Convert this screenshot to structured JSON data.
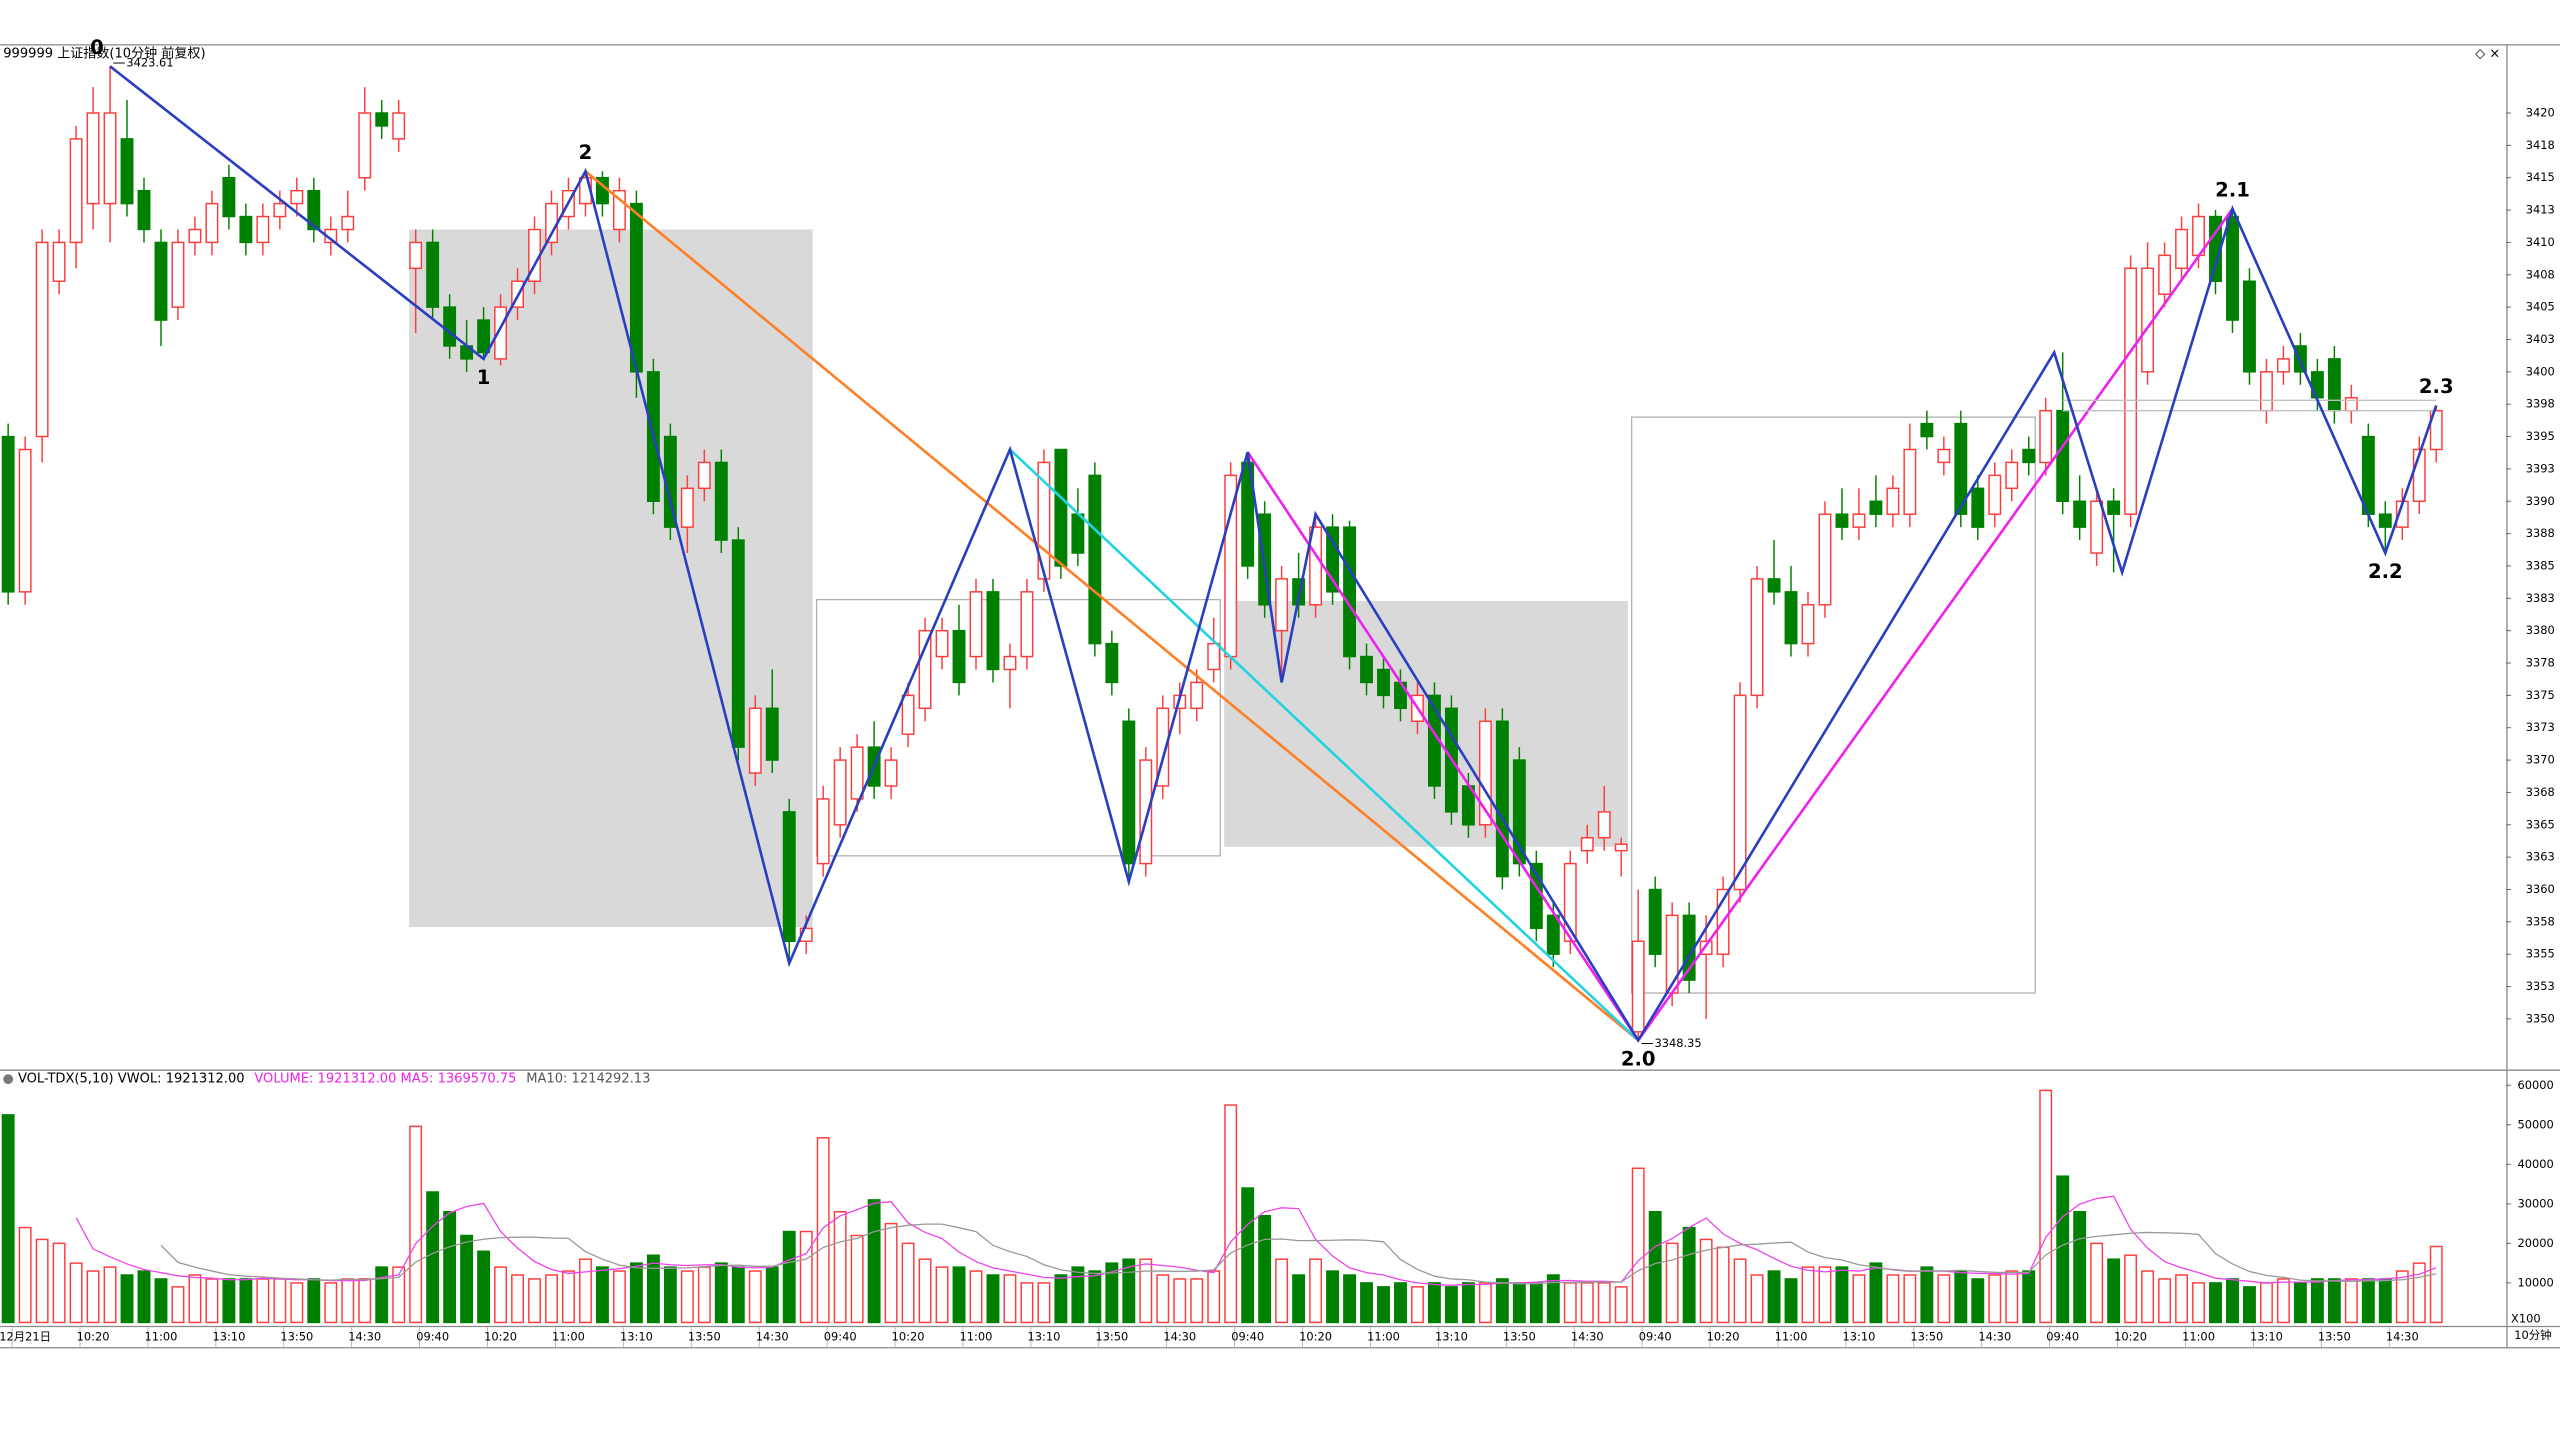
{
  "chart_data": {
    "type": "candlestick",
    "title": "999999 上证指数(10分钟 前复权)",
    "up_color": "#ff3c3c",
    "down_color": "#008000",
    "ylim": [
      3346.1,
      3425.2
    ],
    "yticks": [
      3350,
      {
        "value": 3352.5,
        "label": "3353"
      },
      3355,
      {
        "value": 3357.5,
        "label": "3358"
      },
      3360,
      {
        "value": 3362.5,
        "label": "3363"
      },
      3365,
      {
        "value": 3367.5,
        "label": "3368"
      },
      3370,
      {
        "value": 3372.5,
        "label": "3373"
      },
      3375,
      {
        "value": 3377.5,
        "label": "3378"
      },
      3380,
      {
        "value": 3382.5,
        "label": "3383"
      },
      3385,
      {
        "value": 3387.5,
        "label": "3388"
      },
      3390,
      {
        "value": 3392.5,
        "label": "3393"
      },
      3395,
      {
        "value": 3397.5,
        "label": "3398"
      },
      3400,
      {
        "value": 3402.5,
        "label": "3403"
      },
      3405,
      {
        "value": 3407.5,
        "label": "3408"
      },
      3410,
      {
        "value": 3412.5,
        "label": "3413"
      },
      3415,
      {
        "value": 3417.5,
        "label": "3418"
      },
      3420
    ],
    "xticks": [
      {
        "value": 1,
        "label": "12月21日"
      },
      {
        "value": 5,
        "label": "10:20"
      },
      {
        "value": 9,
        "label": "11:00"
      },
      {
        "value": 13,
        "label": "13:10"
      },
      {
        "value": 17,
        "label": "13:50"
      },
      {
        "value": 21,
        "label": "14:30"
      },
      {
        "value": 25,
        "label": "09:40"
      },
      {
        "value": 29,
        "label": "10:20"
      },
      {
        "value": 33,
        "label": "11:00"
      },
      {
        "value": 37,
        "label": "13:10"
      },
      {
        "value": 41,
        "label": "13:50"
      },
      {
        "value": 45,
        "label": "14:30"
      },
      {
        "value": 49,
        "label": "09:40"
      },
      {
        "value": 53,
        "label": "10:20"
      },
      {
        "value": 57,
        "label": "11:00"
      },
      {
        "value": 61,
        "label": "13:10"
      },
      {
        "value": 65,
        "label": "13:50"
      },
      {
        "value": 69,
        "label": "14:30"
      },
      {
        "value": 73,
        "label": "09:40"
      },
      {
        "value": 77,
        "label": "10:20"
      },
      {
        "value": 81,
        "label": "11:00"
      },
      {
        "value": 85,
        "label": "13:10"
      },
      {
        "value": 89,
        "label": "13:50"
      },
      {
        "value": 93,
        "label": "14:30"
      },
      {
        "value": 97,
        "label": "09:40"
      },
      {
        "value": 101,
        "label": "10:20"
      },
      {
        "value": 105,
        "label": "11:00"
      },
      {
        "value": 109,
        "label": "13:10"
      },
      {
        "value": 113,
        "label": "13:50"
      },
      {
        "value": 117,
        "label": "14:30"
      },
      {
        "value": 121,
        "label": "09:40"
      },
      {
        "value": 125,
        "label": "10:20"
      },
      {
        "value": 129,
        "label": "11:00"
      },
      {
        "value": 133,
        "label": "13:10"
      },
      {
        "value": 137,
        "label": "13:50"
      },
      {
        "value": 141,
        "label": "14:30"
      }
    ],
    "candles": [
      [
        3395,
        3396,
        3382,
        3383
      ],
      [
        3383,
        3395,
        3382,
        3394
      ],
      [
        3395,
        3411,
        3393,
        3410
      ],
      [
        3407,
        3411,
        3406,
        3410
      ],
      [
        3410,
        3419,
        3408,
        3418
      ],
      [
        3413,
        3422,
        3411,
        3420
      ],
      [
        3413,
        3423.61,
        3410,
        3420
      ],
      [
        3418,
        3421,
        3412,
        3413
      ],
      [
        3414,
        3415,
        3410,
        3411
      ],
      [
        3410,
        3411,
        3402,
        3404
      ],
      [
        3405,
        3411,
        3404,
        3410
      ],
      [
        3410,
        3412,
        3409,
        3411
      ],
      [
        3410,
        3414,
        3409,
        3413
      ],
      [
        3415,
        3416,
        3411,
        3412
      ],
      [
        3412,
        3413,
        3409,
        3410
      ],
      [
        3410,
        3413,
        3409,
        3412
      ],
      [
        3412,
        3414,
        3411,
        3413
      ],
      [
        3413,
        3415,
        3412,
        3414
      ],
      [
        3414,
        3415,
        3410,
        3411
      ],
      [
        3410,
        3412,
        3409,
        3411
      ],
      [
        3411,
        3414,
        3410,
        3412
      ],
      [
        3415,
        3422,
        3414,
        3420
      ],
      [
        3420,
        3421,
        3418,
        3419
      ],
      [
        3418,
        3421,
        3417,
        3420
      ],
      [
        3408,
        3411,
        3403,
        3410
      ],
      [
        3410,
        3411,
        3404,
        3405
      ],
      [
        3405,
        3406,
        3401,
        3402
      ],
      [
        3402,
        3404,
        3400,
        3401
      ],
      [
        3404,
        3405,
        3401,
        3401.5
      ],
      [
        3401,
        3406,
        3400.5,
        3405
      ],
      [
        3405,
        3408,
        3404,
        3407
      ],
      [
        3407,
        3412,
        3406,
        3411
      ],
      [
        3410,
        3414,
        3409,
        3413
      ],
      [
        3412,
        3415,
        3411,
        3414
      ],
      [
        3413,
        3415.5,
        3412,
        3415
      ],
      [
        3415,
        3415.5,
        3412,
        3413
      ],
      [
        3411,
        3415,
        3410,
        3414
      ],
      [
        3413,
        3414,
        3398,
        3400
      ],
      [
        3400,
        3401,
        3389,
        3390
      ],
      [
        3395,
        3396,
        3387,
        3388
      ],
      [
        3388,
        3392,
        3386,
        3391
      ],
      [
        3391,
        3394,
        3390,
        3393
      ],
      [
        3393,
        3394,
        3386,
        3387
      ],
      [
        3387,
        3388,
        3370,
        3371
      ],
      [
        3369,
        3375,
        3368,
        3374
      ],
      [
        3374,
        3377,
        3369,
        3370
      ],
      [
        3366,
        3367,
        3354.3,
        3356
      ],
      [
        3356,
        3358,
        3355,
        3357
      ],
      [
        3362,
        3368,
        3361,
        3367
      ],
      [
        3365,
        3371,
        3364,
        3370
      ],
      [
        3367,
        3372,
        3366,
        3371
      ],
      [
        3371,
        3373,
        3367,
        3368
      ],
      [
        3368,
        3371,
        3367,
        3370
      ],
      [
        3372,
        3376,
        3371,
        3375
      ],
      [
        3374,
        3381,
        3373,
        3380
      ],
      [
        3378,
        3381,
        3377,
        3380
      ],
      [
        3380,
        3382,
        3375,
        3376
      ],
      [
        3378,
        3384,
        3377,
        3383
      ],
      [
        3383,
        3384,
        3376,
        3377
      ],
      [
        3377,
        3379,
        3374,
        3378
      ],
      [
        3378,
        3384,
        3377,
        3383
      ],
      [
        3384,
        3394,
        3383,
        3393
      ],
      [
        3394,
        3394,
        3384,
        3385
      ],
      [
        3389,
        3391,
        3385,
        3386
      ],
      [
        3392,
        3393,
        3378,
        3379
      ],
      [
        3379,
        3380,
        3375,
        3376
      ],
      [
        3373,
        3374,
        3360.6,
        3362
      ],
      [
        3362,
        3371,
        3361,
        3370
      ],
      [
        3368,
        3375,
        3367,
        3374
      ],
      [
        3374,
        3376,
        3372,
        3375
      ],
      [
        3374,
        3377,
        3373,
        3376
      ],
      [
        3377,
        3381,
        3376,
        3379
      ],
      [
        3378,
        3393,
        3377,
        3392
      ],
      [
        3393,
        3393.8,
        3384,
        3385
      ],
      [
        3389,
        3390,
        3381,
        3382
      ],
      [
        3380,
        3385,
        3376,
        3384
      ],
      [
        3384,
        3386,
        3381,
        3382
      ],
      [
        3382,
        3389,
        3381,
        3388
      ],
      [
        3388,
        3389,
        3382,
        3383
      ],
      [
        3388,
        3388.5,
        3377,
        3378
      ],
      [
        3378,
        3379,
        3375,
        3376
      ],
      [
        3377,
        3378,
        3374,
        3375
      ],
      [
        3376,
        3377,
        3373,
        3374
      ],
      [
        3373,
        3376,
        3372,
        3375
      ],
      [
        3375,
        3376,
        3367,
        3368
      ],
      [
        3374,
        3375,
        3365,
        3366
      ],
      [
        3368,
        3369,
        3364,
        3365
      ],
      [
        3365,
        3374,
        3364,
        3373
      ],
      [
        3373,
        3374,
        3360,
        3361
      ],
      [
        3370,
        3371,
        3361,
        3362
      ],
      [
        3362,
        3363,
        3356,
        3357
      ],
      [
        3358,
        3359,
        3354,
        3355
      ],
      [
        3356,
        3363,
        3355,
        3362
      ],
      [
        3363,
        3365,
        3362,
        3364
      ],
      [
        3364,
        3368,
        3363,
        3366
      ],
      [
        3363,
        3364,
        3361,
        3363.5
      ],
      [
        3349,
        3360,
        3348.35,
        3356
      ],
      [
        3360,
        3361,
        3354,
        3355
      ],
      [
        3352,
        3359,
        3351,
        3358
      ],
      [
        3358,
        3359,
        3352,
        3353
      ],
      [
        3355,
        3358,
        3350,
        3356
      ],
      [
        3355,
        3361,
        3354,
        3360
      ],
      [
        3360,
        3376,
        3359,
        3375
      ],
      [
        3375,
        3385,
        3374,
        3384
      ],
      [
        3384,
        3387,
        3382,
        3383
      ],
      [
        3383,
        3385,
        3378,
        3379
      ],
      [
        3379,
        3383,
        3378,
        3382
      ],
      [
        3382,
        3390,
        3381,
        3389
      ],
      [
        3389,
        3391,
        3387,
        3388
      ],
      [
        3388,
        3391,
        3387,
        3389
      ],
      [
        3390,
        3392,
        3388,
        3389
      ],
      [
        3389,
        3392,
        3388,
        3391
      ],
      [
        3389,
        3396,
        3388,
        3394
      ],
      [
        3396,
        3397,
        3394,
        3395
      ],
      [
        3393,
        3395,
        3392,
        3394
      ],
      [
        3396,
        3397,
        3388,
        3389
      ],
      [
        3391,
        3392,
        3387,
        3388
      ],
      [
        3389,
        3393,
        3388,
        3392
      ],
      [
        3391,
        3394,
        3390,
        3393
      ],
      [
        3394,
        3395,
        3392,
        3393
      ],
      [
        3393,
        3398,
        3392,
        3397
      ],
      [
        3397,
        3401.5,
        3389,
        3390
      ],
      [
        3390,
        3392,
        3387,
        3388
      ],
      [
        3386,
        3391,
        3385,
        3390
      ],
      [
        3390,
        3391,
        3384.5,
        3389
      ],
      [
        3389,
        3409,
        3388,
        3408
      ],
      [
        3400,
        3410,
        3399,
        3408
      ],
      [
        3406,
        3410,
        3405,
        3409
      ],
      [
        3408,
        3412,
        3407,
        3411
      ],
      [
        3409,
        3413,
        3408,
        3412
      ],
      [
        3412,
        3412.5,
        3406,
        3407
      ],
      [
        3412,
        3412.6,
        3403,
        3404
      ],
      [
        3407,
        3408,
        3399,
        3400
      ],
      [
        3397,
        3401,
        3396,
        3400
      ],
      [
        3400,
        3402,
        3399,
        3401
      ],
      [
        3402,
        3403,
        3399,
        3400
      ],
      [
        3400,
        3401,
        3397,
        3398
      ],
      [
        3401,
        3402,
        3396,
        3397
      ],
      [
        3397,
        3399,
        3396,
        3398
      ],
      [
        3395,
        3396,
        3388,
        3389
      ],
      [
        3389,
        3390,
        3386,
        3388
      ],
      [
        3388,
        3391,
        3387,
        3390
      ],
      [
        3390,
        3395,
        3389,
        3394
      ],
      [
        3394,
        3397.4,
        3393,
        3397
      ]
    ],
    "high_note": {
      "candle": 6
    },
    "low_note": {
      "candle": 96
    },
    "boxes": [
      {
        "x": [
          24,
          47
        ],
        "y": [
          3357.1,
          3411.0
        ],
        "fill": "#d9d9d9"
      },
      {
        "x": [
          48,
          71
        ],
        "y": [
          3362.6,
          3382.4
        ],
        "stroke": "#b0b0b0"
      },
      {
        "x": [
          72,
          95
        ],
        "y": [
          3363.3,
          3382.3
        ],
        "fill": "#d9d9d9"
      },
      {
        "x": [
          96,
          119
        ],
        "y": [
          3352.0,
          3396.5
        ],
        "stroke": "#b0b0b0"
      }
    ],
    "lines": [
      {
        "color": "#ff7f27",
        "points": [
          [
            34,
            3415.5
          ],
          [
            96,
            3348.35
          ]
        ]
      },
      {
        "color": "#22d3e0",
        "points": [
          [
            59,
            3394
          ],
          [
            96,
            3348.35
          ]
        ]
      },
      {
        "color": "#ee22ee",
        "points": [
          [
            73,
            3393.8
          ],
          [
            96,
            3348.35
          ],
          [
            131,
            3412.6
          ]
        ]
      },
      {
        "color": "#c0c0c0",
        "points": [
          [
            121,
            3397.8
          ],
          [
            143,
            3397.8
          ]
        ]
      },
      {
        "color": "#c0c0c0",
        "points": [
          [
            121,
            3397.0
          ],
          [
            143,
            3397.0
          ]
        ]
      },
      {
        "color": "#2a3fbf",
        "points": [
          [
            6,
            3423.61
          ],
          [
            28,
            3401
          ],
          [
            34,
            3415.5
          ],
          [
            46,
            3354.3
          ],
          [
            59,
            3394
          ],
          [
            66,
            3360.6
          ],
          [
            73,
            3393.8
          ],
          [
            75,
            3376
          ],
          [
            77,
            3389
          ],
          [
            96,
            3348.35
          ],
          [
            120.5,
            3401.5
          ],
          [
            124.5,
            3384.5
          ],
          [
            131,
            3412.6
          ],
          [
            140,
            3386
          ],
          [
            143,
            3397.4
          ]
        ],
        "point_labels": {
          "0": "0",
          "1": "1",
          "2": "2",
          "9": "2.0",
          "12": "2.1",
          "13": "2.2",
          "14": "2.3"
        }
      }
    ],
    "volume": {
      "header": [
        {
          "text": "VOL-TDX(5,10)  VWOL: 1921312.00",
          "color": "#000000"
        },
        {
          "text": "VOLUME: 1921312.00  MA5: 1369570.75",
          "color": "#ee22ee"
        },
        {
          "text": "MA10: 1214292.13",
          "color": "#555555"
        }
      ],
      "ylim": [
        0,
        63600
      ],
      "yticks": [
        10000,
        20000,
        30000,
        40000,
        50000,
        60000
      ],
      "ma": [
        {
          "period": 5,
          "color": "#ee44ee"
        },
        {
          "period": 10,
          "color": "#999999"
        }
      ],
      "unit": "X100",
      "values": [
        52500,
        24000,
        21000,
        20000,
        15000,
        13000,
        14000,
        12000,
        13000,
        11000,
        9000,
        12000,
        11000,
        11000,
        11000,
        11000,
        11000,
        10000,
        11000,
        10000,
        11000,
        11000,
        14000,
        14000,
        49600,
        33000,
        28000,
        22000,
        18000,
        14000,
        12000,
        11000,
        12000,
        13000,
        16000,
        14000,
        13000,
        15000,
        17000,
        14000,
        13000,
        14000,
        15000,
        14000,
        13000,
        14000,
        23000,
        23000,
        46700,
        28000,
        22000,
        31000,
        25000,
        20000,
        16000,
        14000,
        14000,
        13000,
        12000,
        12000,
        10000,
        10000,
        12000,
        14000,
        13000,
        15000,
        16000,
        16000,
        12000,
        11000,
        11000,
        13000,
        55000,
        34000,
        27000,
        16000,
        12000,
        16000,
        13000,
        12000,
        10000,
        9000,
        10000,
        9000,
        10000,
        9000,
        10000,
        10000,
        11000,
        10000,
        10000,
        12000,
        10000,
        10000,
        10000,
        9000,
        39000,
        28000,
        20000,
        24000,
        21000,
        19000,
        16000,
        12000,
        13000,
        11000,
        14000,
        14000,
        14000,
        12000,
        15000,
        12000,
        12000,
        14000,
        12000,
        13000,
        11000,
        12000,
        13000,
        13000,
        58700,
        37000,
        28000,
        20000,
        16000,
        17000,
        13000,
        11000,
        12000,
        10000,
        10000,
        11000,
        9000,
        10000,
        11000,
        10000,
        11000,
        11000,
        11000,
        11000,
        11000,
        13000,
        15000,
        19213.12
      ]
    },
    "period_label": "10分钟"
  }
}
